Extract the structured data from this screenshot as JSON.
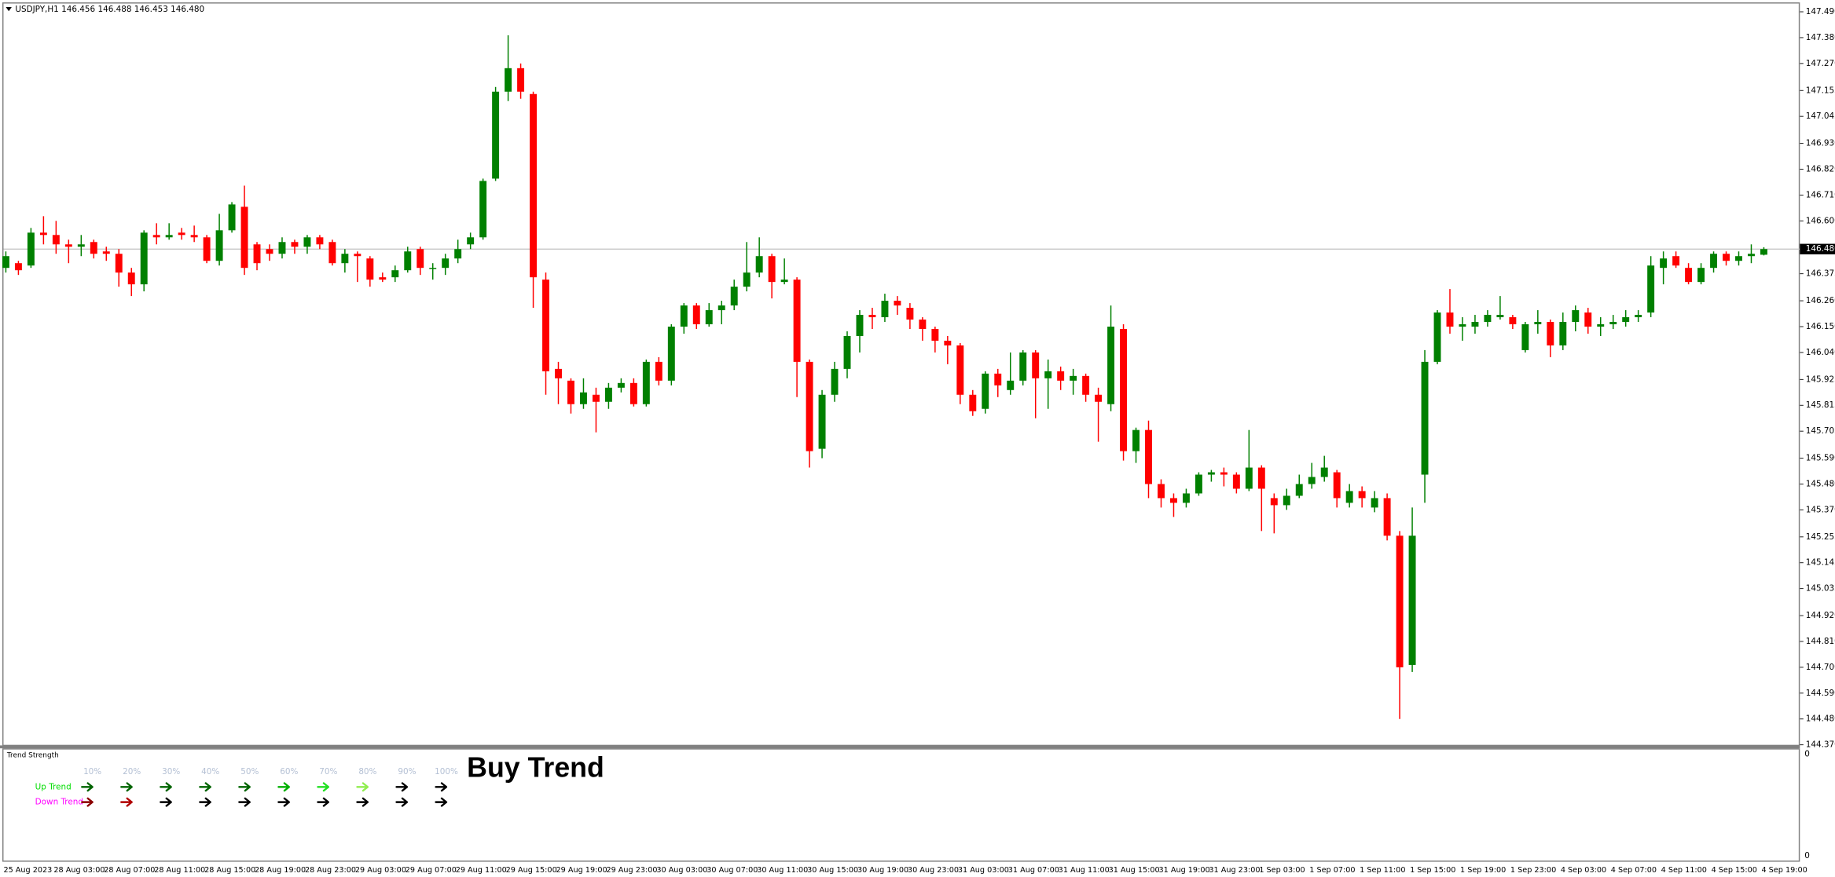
{
  "header": "USDJPY,H1  146.456 146.488 146.453 146.480",
  "chart_data": {
    "type": "candlestick",
    "up_color": "#008000",
    "down_color": "#ff0000",
    "ylim": [
      144.365,
      147.53
    ],
    "yticks": [
      {
        "value": 147.49,
        "label": "147.490"
      },
      {
        "value": 147.38,
        "label": "147.380"
      },
      {
        "value": 147.27,
        "label": "147.270"
      },
      {
        "value": 147.155,
        "label": "147.155"
      },
      {
        "value": 147.045,
        "label": "147.045"
      },
      {
        "value": 146.93,
        "label": "146.930"
      },
      {
        "value": 146.82,
        "label": "146.820"
      },
      {
        "value": 146.71,
        "label": "146.710"
      },
      {
        "value": 146.6,
        "label": "146.600"
      },
      {
        "value": 146.375,
        "label": "146.375"
      },
      {
        "value": 146.26,
        "label": "146.260"
      },
      {
        "value": 146.15,
        "label": "146.150"
      },
      {
        "value": 146.04,
        "label": "146.040"
      },
      {
        "value": 145.925,
        "label": "145.925"
      },
      {
        "value": 145.815,
        "label": "145.815"
      },
      {
        "value": 145.705,
        "label": "145.705"
      },
      {
        "value": 145.59,
        "label": "145.590"
      },
      {
        "value": 145.48,
        "label": "145.480"
      },
      {
        "value": 145.37,
        "label": "145.370"
      },
      {
        "value": 145.255,
        "label": "145.255"
      },
      {
        "value": 145.145,
        "label": "145.145"
      },
      {
        "value": 145.035,
        "label": "145.035"
      },
      {
        "value": 144.92,
        "label": "144.920"
      },
      {
        "value": 144.81,
        "label": "144.810"
      },
      {
        "value": 144.7,
        "label": "144.700"
      },
      {
        "value": 144.59,
        "label": "144.590"
      },
      {
        "value": 144.48,
        "label": "144.480"
      },
      {
        "value": 144.37,
        "label": "144.370"
      }
    ],
    "current_price": {
      "value": 146.48,
      "label": "146.480"
    },
    "categories": [
      "25 Aug 2023",
      null,
      null,
      null,
      "28 Aug 03:00",
      null,
      null,
      null,
      "28 Aug 07:00",
      null,
      null,
      null,
      "28 Aug 11:00",
      null,
      null,
      null,
      "28 Aug 15:00",
      null,
      null,
      null,
      "28 Aug 19:00",
      null,
      null,
      null,
      "28 Aug 23:00",
      null,
      null,
      null,
      "29 Aug 03:00",
      null,
      null,
      null,
      "29 Aug 07:00",
      null,
      null,
      null,
      "29 Aug 11:00",
      null,
      null,
      null,
      "29 Aug 15:00",
      null,
      null,
      null,
      "29 Aug 19:00",
      null,
      null,
      null,
      "29 Aug 23:00",
      null,
      null,
      null,
      "30 Aug 03:00",
      null,
      null,
      null,
      "30 Aug 07:00",
      null,
      null,
      null,
      "30 Aug 11:00",
      null,
      null,
      null,
      "30 Aug 15:00",
      null,
      null,
      null,
      "30 Aug 19:00",
      null,
      null,
      null,
      "30 Aug 23:00",
      null,
      null,
      null,
      "31 Aug 03:00",
      null,
      null,
      null,
      "31 Aug 07:00",
      null,
      null,
      null,
      "31 Aug 11:00",
      null,
      null,
      null,
      "31 Aug 15:00",
      null,
      null,
      null,
      "31 Aug 19:00",
      null,
      null,
      null,
      "31 Aug 23:00",
      null,
      null,
      null,
      "1 Sep 03:00",
      null,
      null,
      null,
      "1 Sep 07:00",
      null,
      null,
      null,
      "1 Sep 11:00",
      null,
      null,
      null,
      "1 Sep 15:00",
      null,
      null,
      null,
      "1 Sep 19:00",
      null,
      null,
      null,
      "1 Sep 23:00",
      null,
      null,
      null,
      "4 Sep 03:00",
      null,
      null,
      null,
      "4 Sep 07:00",
      null,
      null,
      null,
      "4 Sep 11:00",
      null,
      null,
      null,
      "4 Sep 15:00",
      null,
      null,
      null,
      "4 Sep 19:00"
    ],
    "open": [
      146.4,
      146.42,
      146.41,
      146.55,
      146.54,
      146.5,
      146.49,
      146.51,
      146.47,
      146.46,
      146.38,
      146.33,
      146.54,
      146.53,
      146.55,
      146.54,
      146.53,
      146.43,
      146.56,
      146.66,
      146.5,
      146.48,
      146.46,
      146.51,
      146.49,
      146.53,
      146.51,
      146.42,
      146.46,
      146.44,
      146.36,
      146.36,
      146.39,
      146.48,
      146.4,
      146.4,
      146.44,
      146.5,
      146.53,
      146.78,
      147.15,
      147.25,
      147.14,
      146.35,
      145.97,
      145.92,
      145.82,
      145.86,
      145.83,
      145.89,
      145.91,
      145.82,
      146.0,
      145.92,
      146.15,
      146.24,
      146.16,
      146.22,
      146.24,
      146.32,
      146.38,
      146.45,
      146.34,
      146.35,
      146.0,
      145.63,
      145.86,
      145.97,
      146.11,
      146.2,
      146.19,
      146.26,
      146.23,
      146.18,
      146.14,
      146.09,
      146.07,
      145.86,
      145.8,
      145.95,
      145.88,
      145.92,
      146.04,
      145.93,
      145.96,
      145.92,
      145.94,
      145.86,
      145.82,
      146.14,
      145.62,
      145.71,
      145.48,
      145.42,
      145.4,
      145.44,
      145.52,
      145.53,
      145.52,
      145.46,
      145.55,
      145.42,
      145.39,
      145.43,
      145.48,
      145.51,
      145.53,
      145.4,
      145.45,
      145.38,
      145.42,
      145.26,
      144.71,
      145.52,
      146.0,
      146.21,
      146.15,
      146.15,
      146.17,
      146.19,
      146.19,
      146.05,
      146.16,
      146.17,
      146.07,
      146.17,
      146.21,
      146.15,
      146.16,
      146.17,
      146.19,
      146.21,
      146.4,
      146.45,
      146.4,
      146.34,
      146.4,
      146.46,
      146.43,
      146.45,
      146.456
    ],
    "high": [
      146.47,
      146.43,
      146.57,
      146.62,
      146.6,
      146.52,
      146.54,
      146.52,
      146.49,
      146.48,
      146.4,
      146.56,
      146.59,
      146.59,
      146.57,
      146.58,
      146.54,
      146.63,
      146.68,
      146.75,
      146.51,
      146.5,
      146.53,
      146.52,
      146.54,
      146.54,
      146.52,
      146.48,
      146.47,
      146.45,
      146.38,
      146.41,
      146.49,
      146.49,
      146.42,
      146.46,
      146.52,
      146.55,
      146.78,
      147.17,
      147.39,
      147.27,
      147.15,
      146.38,
      146.0,
      145.93,
      145.93,
      145.89,
      145.91,
      145.93,
      145.93,
      146.01,
      146.02,
      146.16,
      146.25,
      146.25,
      146.25,
      146.26,
      146.35,
      146.51,
      146.53,
      146.46,
      146.44,
      146.36,
      146.01,
      145.88,
      146.0,
      146.13,
      146.22,
      146.23,
      146.29,
      146.28,
      146.25,
      146.19,
      146.15,
      146.11,
      146.08,
      145.88,
      145.96,
      145.97,
      146.04,
      146.05,
      146.05,
      146.01,
      145.98,
      145.97,
      145.95,
      145.89,
      146.24,
      146.16,
      145.72,
      145.75,
      145.5,
      145.44,
      145.46,
      145.53,
      145.54,
      145.55,
      145.53,
      145.71,
      145.56,
      145.44,
      145.46,
      145.52,
      145.57,
      145.6,
      145.54,
      145.48,
      145.47,
      145.45,
      145.44,
      145.28,
      145.38,
      146.05,
      146.22,
      146.31,
      146.19,
      146.2,
      146.22,
      146.28,
      146.2,
      146.17,
      146.22,
      146.18,
      146.21,
      146.24,
      146.23,
      146.19,
      146.2,
      146.22,
      146.22,
      146.45,
      146.47,
      146.47,
      146.42,
      146.42,
      146.47,
      146.47,
      146.47,
      146.5,
      146.488
    ],
    "low": [
      146.38,
      146.37,
      146.4,
      146.5,
      146.46,
      146.42,
      146.45,
      146.44,
      146.43,
      146.32,
      146.28,
      146.3,
      146.5,
      146.52,
      146.52,
      146.51,
      146.42,
      146.41,
      146.55,
      146.37,
      146.39,
      146.43,
      146.44,
      146.46,
      146.46,
      146.48,
      146.41,
      146.38,
      146.34,
      146.32,
      146.34,
      146.34,
      146.38,
      146.37,
      146.35,
      146.37,
      146.42,
      146.48,
      146.52,
      146.77,
      147.11,
      147.12,
      146.23,
      145.86,
      145.82,
      145.78,
      145.8,
      145.7,
      145.8,
      145.87,
      145.81,
      145.81,
      145.9,
      145.9,
      146.12,
      146.14,
      146.15,
      146.16,
      146.22,
      146.3,
      146.36,
      146.27,
      146.33,
      145.85,
      145.55,
      145.59,
      145.83,
      145.93,
      146.04,
      146.14,
      146.17,
      146.2,
      146.14,
      146.09,
      146.04,
      145.99,
      145.82,
      145.77,
      145.78,
      145.85,
      145.86,
      145.9,
      145.76,
      145.8,
      145.88,
      145.86,
      145.83,
      145.66,
      145.79,
      145.58,
      145.57,
      145.42,
      145.38,
      145.34,
      145.38,
      145.43,
      145.49,
      145.47,
      145.44,
      145.45,
      145.28,
      145.27,
      145.37,
      145.42,
      145.46,
      145.49,
      145.38,
      145.38,
      145.38,
      145.36,
      145.24,
      144.48,
      144.68,
      145.4,
      145.99,
      146.12,
      146.09,
      146.12,
      146.15,
      146.18,
      146.14,
      146.04,
      146.12,
      146.02,
      146.05,
      146.13,
      146.12,
      146.11,
      146.14,
      146.15,
      146.17,
      146.19,
      146.33,
      146.4,
      146.33,
      146.33,
      146.38,
      146.41,
      146.41,
      146.42,
      146.453
    ],
    "close": [
      146.45,
      146.39,
      146.55,
      146.54,
      146.5,
      146.49,
      146.5,
      146.46,
      146.46,
      146.38,
      146.33,
      146.55,
      146.53,
      146.54,
      146.54,
      146.53,
      146.43,
      146.56,
      146.67,
      146.4,
      146.42,
      146.46,
      146.51,
      146.49,
      146.53,
      146.5,
      146.42,
      146.46,
      146.45,
      146.35,
      146.35,
      146.39,
      146.47,
      146.4,
      146.4,
      146.44,
      146.48,
      146.53,
      146.77,
      147.15,
      147.25,
      147.15,
      146.36,
      145.96,
      145.93,
      145.82,
      145.87,
      145.83,
      145.89,
      145.91,
      145.82,
      146.0,
      145.92,
      146.15,
      146.24,
      146.16,
      146.22,
      146.24,
      146.32,
      146.38,
      146.45,
      146.34,
      146.35,
      146.0,
      145.62,
      145.86,
      145.97,
      146.11,
      146.2,
      146.19,
      146.26,
      146.24,
      146.18,
      146.14,
      146.09,
      146.07,
      145.86,
      145.79,
      145.95,
      145.9,
      145.92,
      146.04,
      145.93,
      145.96,
      145.92,
      145.94,
      145.86,
      145.83,
      146.15,
      145.62,
      145.71,
      145.48,
      145.42,
      145.4,
      145.44,
      145.52,
      145.53,
      145.52,
      145.46,
      145.55,
      145.46,
      145.39,
      145.43,
      145.48,
      145.51,
      145.55,
      145.42,
      145.45,
      145.42,
      145.42,
      145.26,
      144.7,
      145.26,
      146.0,
      146.21,
      146.15,
      146.16,
      146.17,
      146.2,
      146.2,
      146.16,
      146.16,
      146.17,
      146.07,
      146.17,
      146.22,
      146.15,
      146.16,
      146.17,
      146.19,
      146.2,
      146.41,
      146.44,
      146.41,
      146.34,
      146.4,
      146.46,
      146.43,
      146.45,
      146.46,
      146.48
    ]
  },
  "indicator": {
    "title": "Trend Strength",
    "levels": [
      "10%",
      "20%",
      "30%",
      "40%",
      "50%",
      "60%",
      "70%",
      "80%",
      "90%",
      "100%"
    ],
    "rows": [
      {
        "name": "Up Trend",
        "color": "#00dd00",
        "arrow_colors": [
          "#006400",
          "#006400",
          "#006400",
          "#006400",
          "#006400",
          "#00b000",
          "#22e022",
          "#90ee50",
          "#000000",
          "#000000"
        ]
      },
      {
        "name": "Down Trend",
        "color": "#ff00ff",
        "arrow_colors": [
          "#8b0000",
          "#b00000",
          "#000000",
          "#000000",
          "#000000",
          "#000000",
          "#000000",
          "#000000",
          "#000000",
          "#000000"
        ]
      }
    ],
    "signal": "Buy Trend",
    "scale_labels": [
      "0",
      "0"
    ]
  }
}
